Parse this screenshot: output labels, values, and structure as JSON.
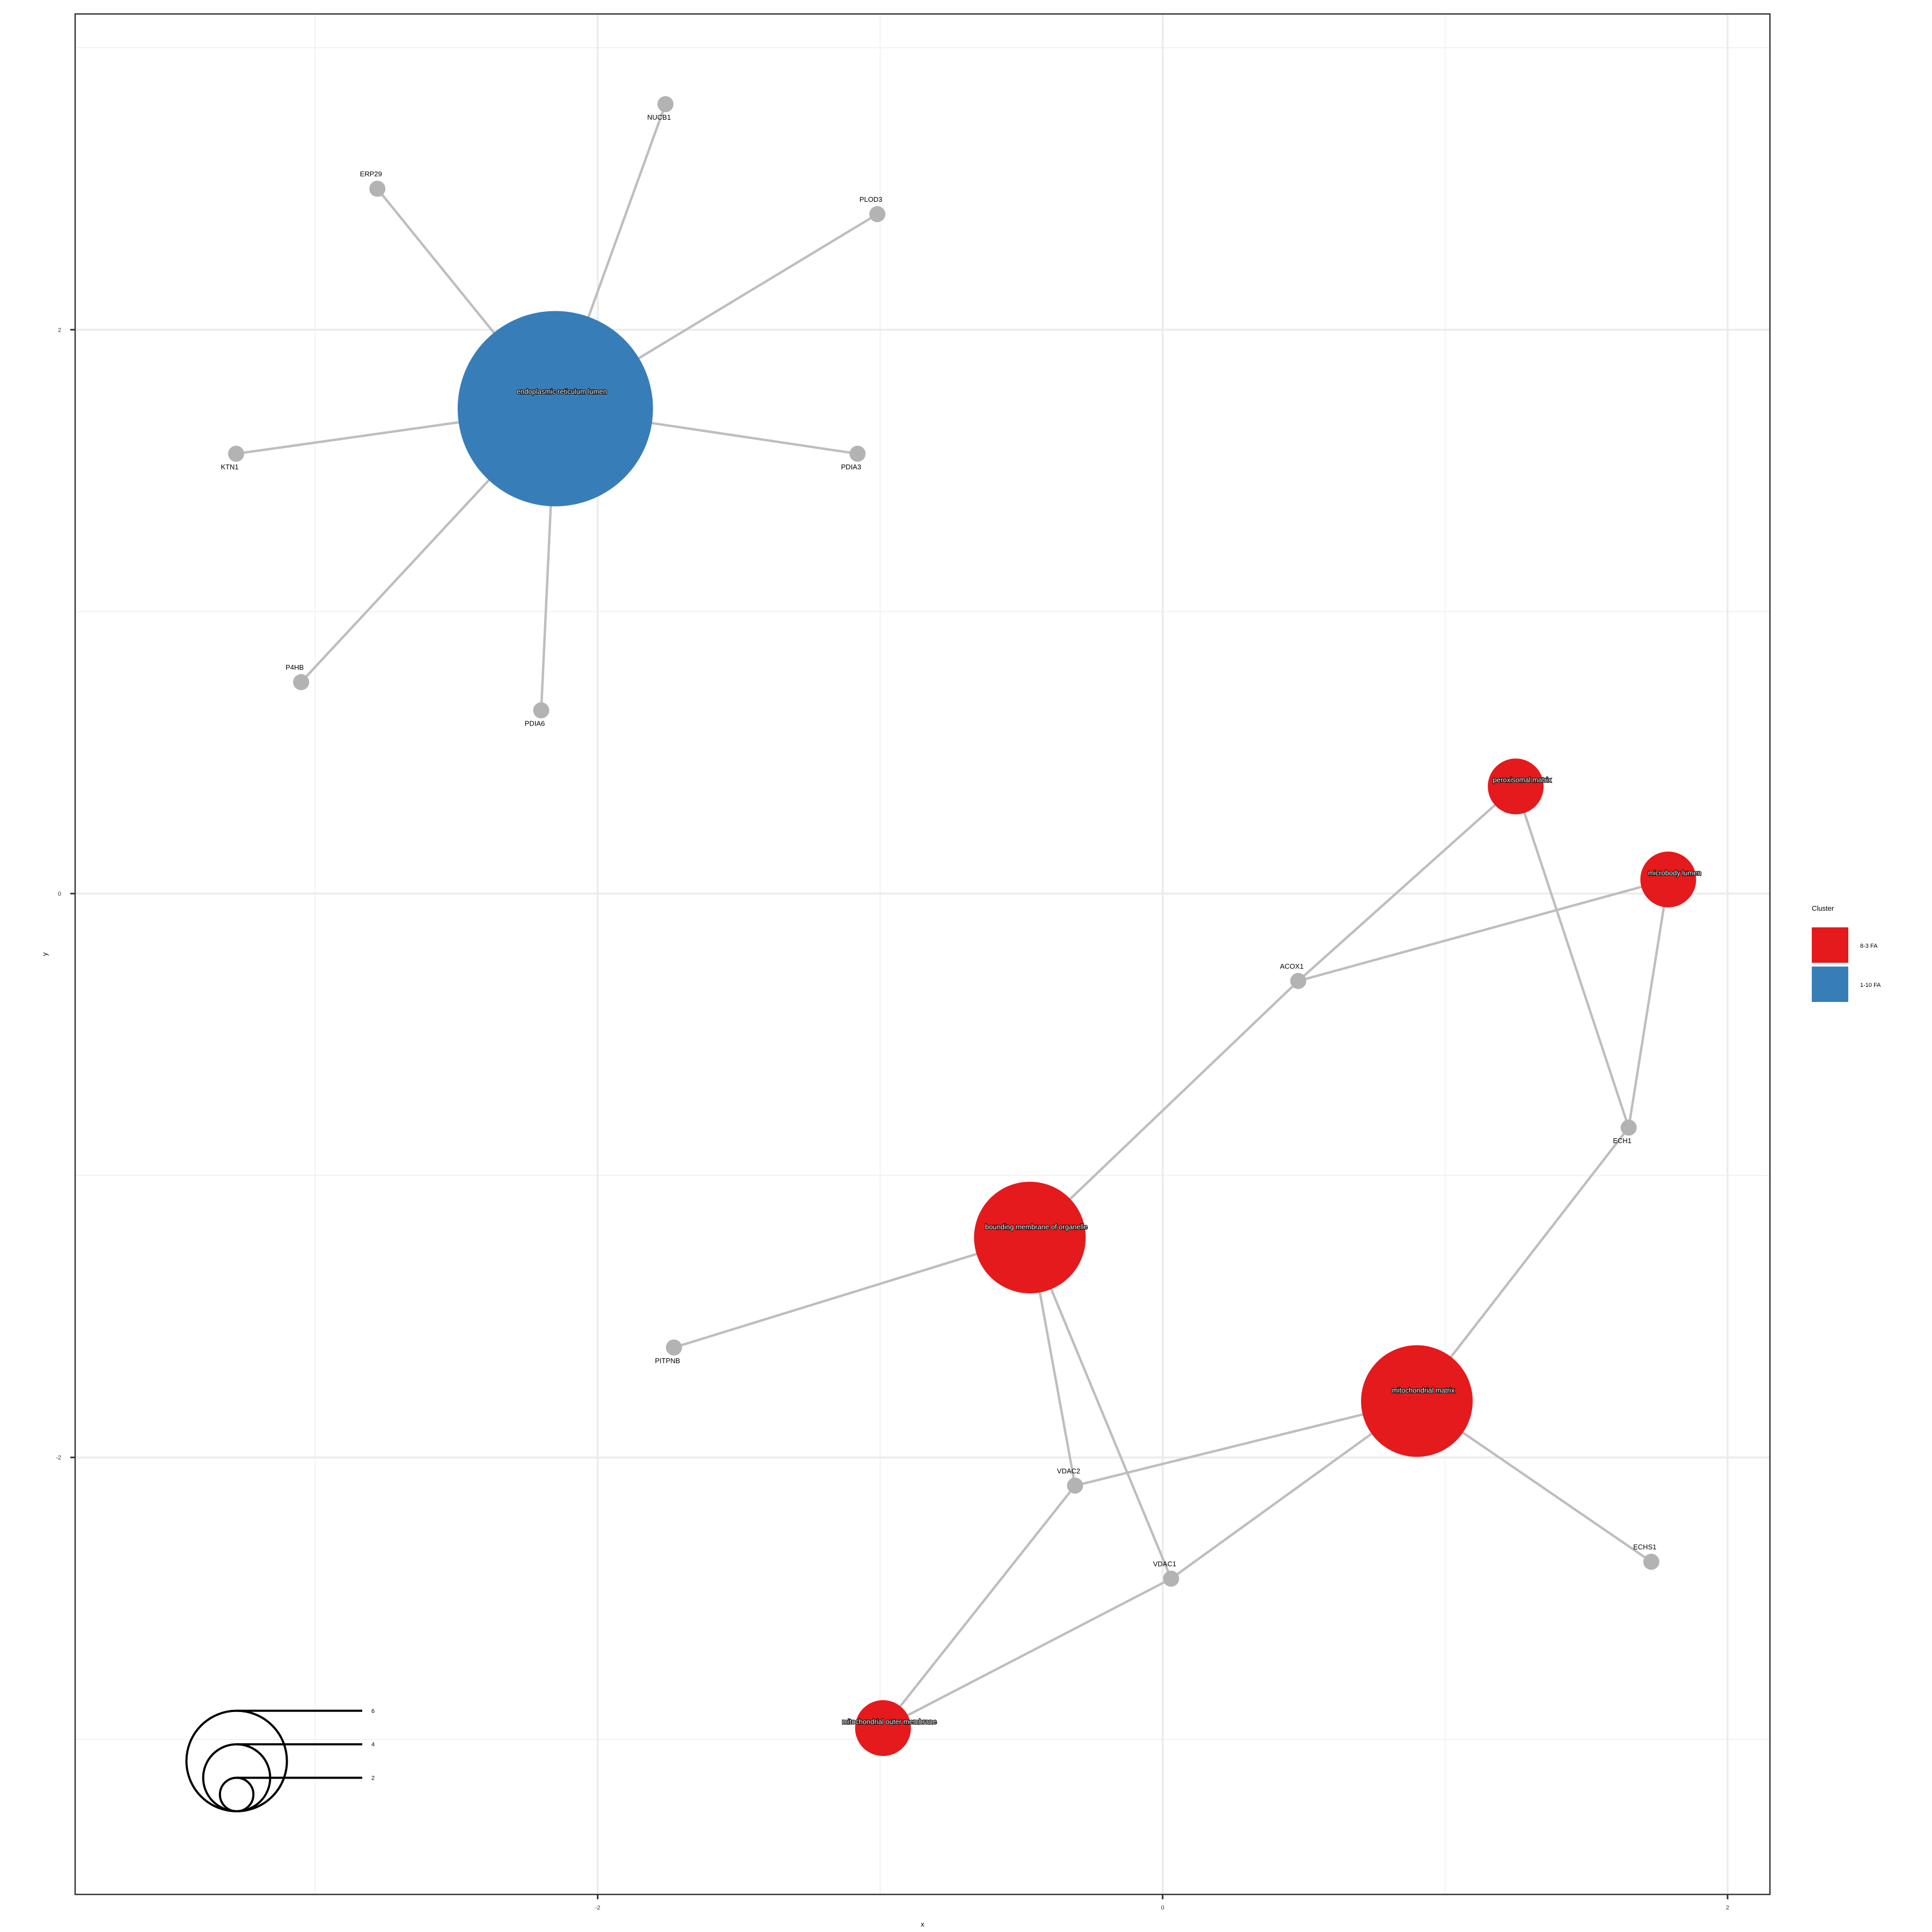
{
  "colors": {
    "edge": "#bebebe",
    "gene": "#b3b3b3",
    "grid_major": "#ebebeb",
    "grid_minor": "#f2f2f2",
    "panel_border": "#333333",
    "cluster_red": "#e41a1c",
    "cluster_blue": "#377eb8"
  },
  "axes": {
    "x_title": "x",
    "y_title": "y",
    "xlim": [
      -3.85,
      2.15
    ],
    "ylim": [
      -3.55,
      3.12
    ],
    "x_ticks": [
      {
        "value": -2,
        "label": "-2"
      },
      {
        "value": 0,
        "label": "0"
      },
      {
        "value": 2,
        "label": "2"
      }
    ],
    "y_ticks": [
      {
        "value": 2,
        "label": "2"
      },
      {
        "value": 0,
        "label": "0"
      },
      {
        "value": -2,
        "label": "-2"
      }
    ],
    "x_minor": [
      -3,
      -1,
      1
    ],
    "y_minor": [
      3,
      1,
      -1,
      -3
    ]
  },
  "legend": {
    "title": "Cluster",
    "items": [
      {
        "label": "8-3 FA",
        "color": "#e41a1c"
      },
      {
        "label": "1-10 FA",
        "color": "#377eb8"
      }
    ]
  },
  "size_legend": {
    "sizes": [
      6,
      4,
      2
    ],
    "labels": [
      "6",
      "4",
      "2"
    ]
  },
  "nodes": [
    {
      "id": "ER",
      "label": "endoplasmic reticulum lumen",
      "x": -2.15,
      "y": 1.72,
      "size": 7,
      "type": "term",
      "color": "#377eb8",
      "label_pos": "center"
    },
    {
      "id": "BMO",
      "label": "bounding membrane of organelle",
      "x": -0.47,
      "y": -1.22,
      "size": 4,
      "type": "term",
      "color": "#e41a1c",
      "label_pos": "center"
    },
    {
      "id": "MM",
      "label": "mitochondrial matrix",
      "x": 0.9,
      "y": -1.8,
      "size": 4,
      "type": "term",
      "color": "#e41a1c",
      "label_pos": "center"
    },
    {
      "id": "PM",
      "label": "peroxisomal matrix",
      "x": 1.25,
      "y": 0.38,
      "size": 2,
      "type": "term",
      "color": "#e41a1c",
      "label_pos": "center"
    },
    {
      "id": "ML",
      "label": "microbody lumen",
      "x": 1.79,
      "y": 0.05,
      "size": 2,
      "type": "term",
      "color": "#e41a1c",
      "label_pos": "center"
    },
    {
      "id": "MOM",
      "label": "mitochondrial outer membrane",
      "x": -0.99,
      "y": -2.96,
      "size": 2,
      "type": "term",
      "color": "#e41a1c",
      "label_pos": "center"
    },
    {
      "id": "NUCB1",
      "label": "NUCB1",
      "x": -1.76,
      "y": 2.8,
      "size": 0,
      "type": "gene",
      "label_pos": "below"
    },
    {
      "id": "ERP29",
      "label": "ERP29",
      "x": -2.78,
      "y": 2.5,
      "size": 0,
      "type": "gene",
      "label_pos": "above"
    },
    {
      "id": "PLOD3",
      "label": "PLOD3",
      "x": -1.01,
      "y": 2.41,
      "size": 0,
      "type": "gene",
      "label_pos": "above"
    },
    {
      "id": "KTN1",
      "label": "KTN1",
      "x": -3.28,
      "y": 1.56,
      "size": 0,
      "type": "gene",
      "label_pos": "below"
    },
    {
      "id": "PDIA3",
      "label": "PDIA3",
      "x": -1.08,
      "y": 1.56,
      "size": 0,
      "type": "gene",
      "label_pos": "below"
    },
    {
      "id": "P4HB",
      "label": "P4HB",
      "x": -3.05,
      "y": 0.75,
      "size": 0,
      "type": "gene",
      "label_pos": "above"
    },
    {
      "id": "PDIA6",
      "label": "PDIA6",
      "x": -2.2,
      "y": 0.65,
      "size": 0,
      "type": "gene",
      "label_pos": "below"
    },
    {
      "id": "ACOX1",
      "label": "ACOX1",
      "x": 0.48,
      "y": -0.31,
      "size": 0,
      "type": "gene",
      "label_pos": "above"
    },
    {
      "id": "ECH1",
      "label": "ECH1",
      "x": 1.65,
      "y": -0.83,
      "size": 0,
      "type": "gene",
      "label_pos": "below"
    },
    {
      "id": "PITPNB",
      "label": "PITPNB",
      "x": -1.73,
      "y": -1.61,
      "size": 0,
      "type": "gene",
      "label_pos": "below"
    },
    {
      "id": "VDAC2",
      "label": "VDAC2",
      "x": -0.31,
      "y": -2.1,
      "size": 0,
      "type": "gene",
      "label_pos": "above"
    },
    {
      "id": "VDAC1",
      "label": "VDAC1",
      "x": 0.03,
      "y": -2.43,
      "size": 0,
      "type": "gene",
      "label_pos": "above"
    },
    {
      "id": "ECHS1",
      "label": "ECHS1",
      "x": 1.73,
      "y": -2.37,
      "size": 0,
      "type": "gene",
      "label_pos": "above"
    }
  ],
  "edges": [
    [
      "ER",
      "NUCB1"
    ],
    [
      "ER",
      "ERP29"
    ],
    [
      "ER",
      "PLOD3"
    ],
    [
      "ER",
      "KTN1"
    ],
    [
      "ER",
      "PDIA3"
    ],
    [
      "ER",
      "P4HB"
    ],
    [
      "ER",
      "PDIA6"
    ],
    [
      "PM",
      "ACOX1"
    ],
    [
      "PM",
      "ECH1"
    ],
    [
      "ML",
      "ACOX1"
    ],
    [
      "ML",
      "ECH1"
    ],
    [
      "BMO",
      "ACOX1"
    ],
    [
      "BMO",
      "PITPNB"
    ],
    [
      "BMO",
      "VDAC2"
    ],
    [
      "BMO",
      "VDAC1"
    ],
    [
      "MM",
      "ECH1"
    ],
    [
      "MM",
      "VDAC2"
    ],
    [
      "MM",
      "VDAC1"
    ],
    [
      "MM",
      "ECHS1"
    ],
    [
      "MOM",
      "VDAC2"
    ],
    [
      "MOM",
      "VDAC1"
    ]
  ]
}
